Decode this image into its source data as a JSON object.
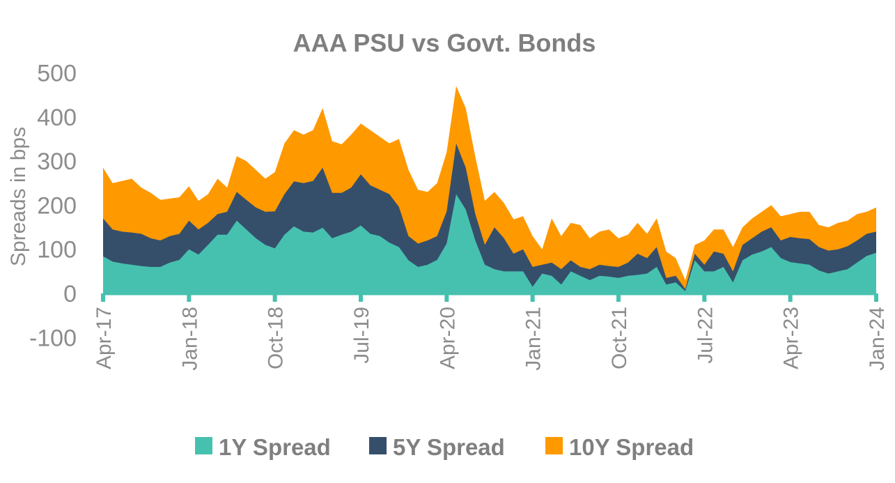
{
  "chart_data": {
    "type": "area",
    "title": "AAA PSU vs Govt. Bonds",
    "xlabel": "",
    "ylabel": "Spreads in bps",
    "ylim": [
      -100,
      500
    ],
    "yticks": [
      -100,
      0,
      100,
      200,
      300,
      400,
      500
    ],
    "xtick_labels": [
      "Apr-17",
      "Jan-18",
      "Oct-18",
      "Jul-19",
      "Apr-20",
      "Jan-21",
      "Oct-21",
      "Jul-22",
      "Apr-23",
      "Jan-24"
    ],
    "x_start": "Apr-17",
    "x_frequency": "monthly",
    "grid": false,
    "legend_position": "bottom",
    "series": [
      {
        "name": "10Y Spread",
        "color": "#FF9900",
        "values": [
          285,
          250,
          255,
          260,
          240,
          228,
          212,
          215,
          218,
          243,
          210,
          225,
          260,
          240,
          311,
          300,
          280,
          260,
          275,
          340,
          370,
          360,
          370,
          420,
          345,
          338,
          360,
          385,
          370,
          355,
          340,
          350,
          280,
          235,
          230,
          250,
          320,
          470,
          420,
          310,
          210,
          230,
          205,
          168,
          175,
          130,
          100,
          170,
          130,
          160,
          155,
          125,
          140,
          145,
          125,
          133,
          160,
          135,
          170,
          95,
          80,
          30,
          110,
          120,
          145,
          145,
          105,
          150,
          170,
          185,
          200,
          175,
          180,
          185,
          185,
          155,
          150,
          160,
          165,
          180,
          185,
          195
        ]
      },
      {
        "name": "5Y Spread",
        "color": "#354F6B",
        "values": [
          170,
          145,
          140,
          138,
          135,
          125,
          120,
          130,
          135,
          165,
          145,
          160,
          180,
          185,
          230,
          212,
          195,
          185,
          186,
          225,
          254,
          250,
          255,
          285,
          228,
          228,
          240,
          270,
          245,
          235,
          225,
          196,
          130,
          113,
          120,
          130,
          186,
          340,
          285,
          180,
          110,
          150,
          125,
          90,
          100,
          60,
          65,
          70,
          55,
          75,
          60,
          55,
          65,
          62,
          60,
          70,
          90,
          80,
          105,
          35,
          40,
          10,
          90,
          65,
          95,
          90,
          50,
          110,
          125,
          140,
          150,
          120,
          128,
          125,
          123,
          105,
          97,
          100,
          107,
          120,
          135,
          140
        ]
      },
      {
        "name": "1Y Spread",
        "color": "#47C1AF",
        "values": [
          84,
          72,
          68,
          65,
          62,
          60,
          60,
          70,
          76,
          100,
          88,
          110,
          133,
          133,
          165,
          145,
          125,
          110,
          102,
          133,
          152,
          140,
          138,
          149,
          125,
          133,
          140,
          154,
          135,
          130,
          115,
          105,
          75,
          60,
          65,
          76,
          113,
          225,
          190,
          120,
          65,
          55,
          50,
          50,
          50,
          15,
          45,
          40,
          20,
          50,
          40,
          30,
          40,
          38,
          35,
          40,
          42,
          45,
          60,
          20,
          25,
          5,
          75,
          50,
          50,
          60,
          25,
          75,
          88,
          95,
          105,
          80,
          71,
          68,
          65,
          52,
          45,
          50,
          55,
          70,
          85,
          92
        ]
      }
    ]
  },
  "legend": [
    {
      "label": "1Y Spread",
      "color": "#47C1AF"
    },
    {
      "label": "5Y Spread",
      "color": "#354F6B"
    },
    {
      "label": "10Y Spread",
      "color": "#FF9900"
    }
  ]
}
